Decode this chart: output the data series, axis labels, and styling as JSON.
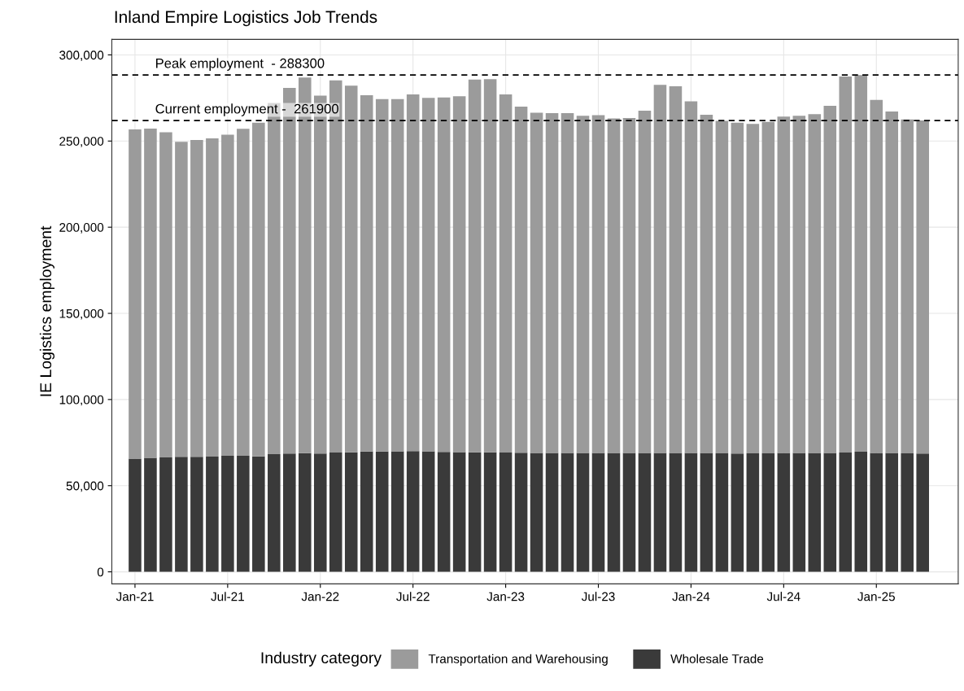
{
  "chart_data": {
    "type": "bar",
    "title": "Inland Empire Logistics Job Trends",
    "ylabel": "IE Logistics employment",
    "legend_title": "Industry category",
    "categories": [
      "Jan-21",
      null,
      null,
      null,
      null,
      null,
      "Jul-21",
      null,
      null,
      null,
      null,
      null,
      "Jan-22",
      null,
      null,
      null,
      null,
      null,
      "Jul-22",
      null,
      null,
      null,
      null,
      null,
      "Jan-23",
      null,
      null,
      null,
      null,
      null,
      "Jul-23",
      null,
      null,
      null,
      null,
      null,
      "Jan-24",
      null,
      null,
      null,
      null,
      null,
      "Jul-24",
      null,
      null,
      null,
      null,
      null,
      "Jan-25",
      null,
      null,
      null
    ],
    "stacked": true,
    "series": [
      {
        "name": "Wholesale Trade",
        "color": "#3a3a3a",
        "values": [
          65700,
          66200,
          66400,
          66800,
          66800,
          66900,
          67300,
          67400,
          67000,
          68300,
          68700,
          68900,
          68700,
          69200,
          69400,
          69800,
          69800,
          70000,
          70100,
          70000,
          69600,
          69500,
          69400,
          69400,
          69200,
          69100,
          69000,
          69000,
          69000,
          69000,
          69000,
          69000,
          69000,
          69000,
          69000,
          69000,
          69000,
          69000,
          68800,
          68600,
          68800,
          68800,
          69000,
          69000,
          69000,
          69000,
          69200,
          69700,
          69000,
          69000,
          68800,
          68600
        ]
      },
      {
        "name": "Transportation and Warehousing",
        "color": "#9b9b9b",
        "values": [
          191000,
          191000,
          188700,
          182800,
          183800,
          184700,
          186400,
          189700,
          193600,
          203700,
          212100,
          218000,
          207600,
          216000,
          212800,
          206800,
          204500,
          204300,
          207000,
          205100,
          205700,
          206500,
          216300,
          216500,
          207900,
          200900,
          197400,
          197200,
          197200,
          195700,
          196000,
          194100,
          194400,
          198600,
          213600,
          212800,
          204100,
          196200,
          192900,
          192000,
          191100,
          192300,
          195200,
          195700,
          196600,
          201400,
          218200,
          218600,
          204900,
          198200,
          193700,
          193300
        ]
      }
    ],
    "ylim": [
      -7000,
      309000
    ],
    "yticks": [
      0,
      {
        "value": 50000,
        "label": "50,000"
      },
      {
        "value": 100000,
        "label": "100,000"
      },
      {
        "value": 150000,
        "label": "150,000"
      },
      {
        "value": 200000,
        "label": "200,000"
      },
      {
        "value": 250000,
        "label": "250,000"
      },
      {
        "value": 300000,
        "label": "300,000"
      }
    ],
    "ref_lines": [
      {
        "axis": "y",
        "value": 288300,
        "label": "Peak employment  - 288300",
        "color": "#000000",
        "line_style": "dashed"
      },
      {
        "axis": "y",
        "value": 261900,
        "label": "Current employment -  261900",
        "color": "#000000",
        "line_style": "dashed"
      }
    ],
    "grid": true,
    "legend": "bottom"
  }
}
